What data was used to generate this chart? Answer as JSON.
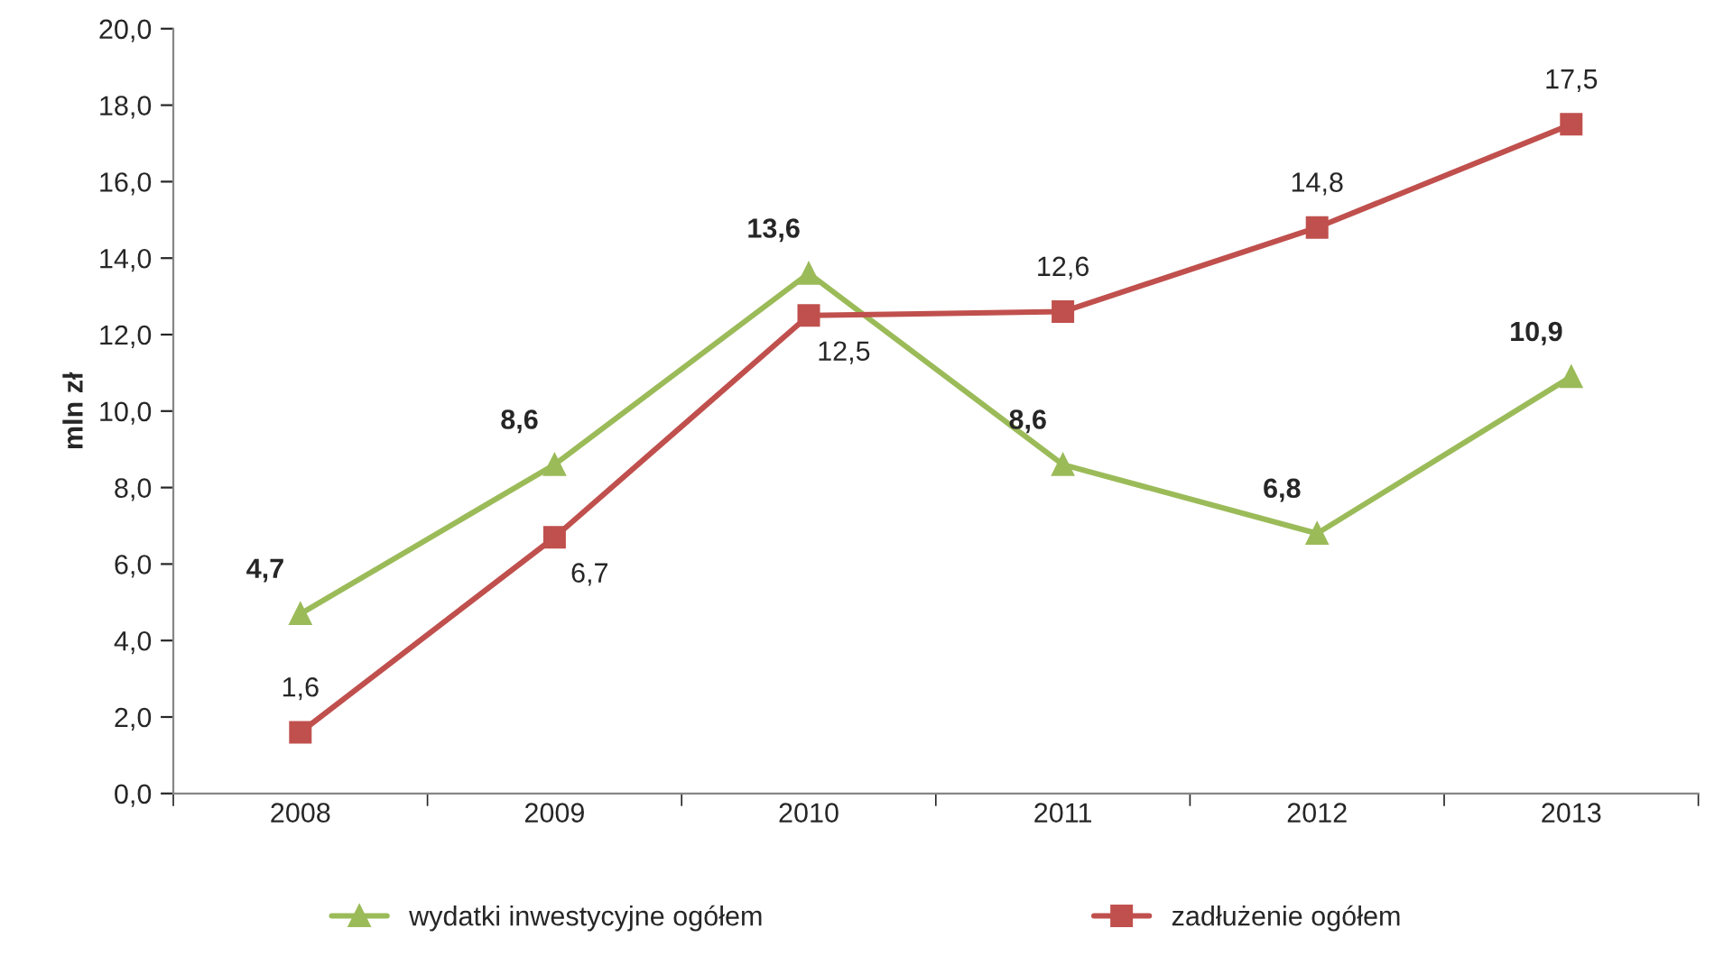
{
  "chart_data": {
    "type": "line",
    "ylabel": "mln zł",
    "categories": [
      "2008",
      "2009",
      "2010",
      "2011",
      "2012",
      "2013"
    ],
    "series": [
      {
        "name": "wydatki inwestycyjne ogółem",
        "color": "#9bbb59",
        "marker": "triangle",
        "values": [
          4.7,
          8.6,
          13.6,
          8.6,
          6.8,
          10.9
        ],
        "value_labels": [
          "4,7",
          "8,6",
          "13,6",
          "8,6",
          "6,8",
          "10,9"
        ]
      },
      {
        "name": "zadłużenie ogółem",
        "color": "#c0504d",
        "marker": "square",
        "values": [
          1.6,
          6.7,
          12.5,
          12.6,
          14.8,
          17.5
        ],
        "value_labels": [
          "1,6",
          "6,7",
          "12,5",
          "12,6",
          "14,8",
          "17,5"
        ]
      }
    ],
    "ylim": [
      0,
      20
    ],
    "yticks": [
      {
        "value": 0,
        "label": "0,0"
      },
      {
        "value": 2,
        "label": "2,0"
      },
      {
        "value": 4,
        "label": "4,0"
      },
      {
        "value": 6,
        "label": "6,0"
      },
      {
        "value": 8,
        "label": "8,0"
      },
      {
        "value": 10,
        "label": "10,0"
      },
      {
        "value": 12,
        "label": "12,0"
      },
      {
        "value": 14,
        "label": "14,0"
      },
      {
        "value": 16,
        "label": "16,0"
      },
      {
        "value": 18,
        "label": "18,0"
      },
      {
        "value": 20,
        "label": "20,0"
      }
    ],
    "grid": false,
    "legend": "bottom",
    "line_style": "solid"
  }
}
